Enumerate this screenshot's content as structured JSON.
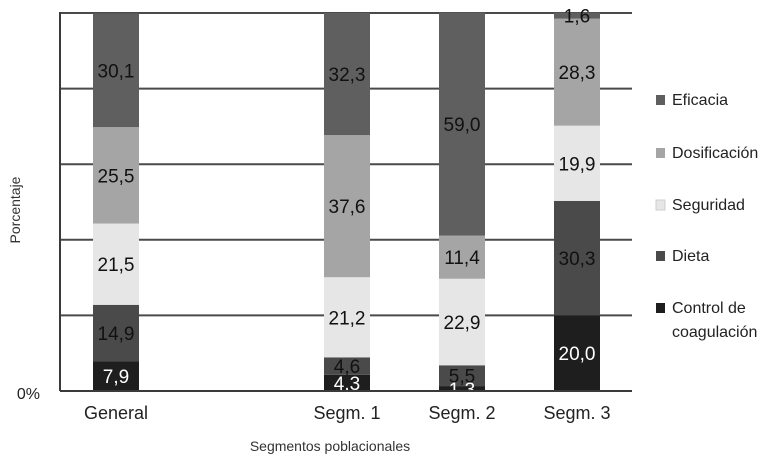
{
  "chart_data": {
    "type": "bar",
    "stacked": true,
    "title": "",
    "xlabel": "Segmentos poblacionales",
    "ylabel": "Porcentaje",
    "ylim": [
      0,
      100
    ],
    "y_tick_labels": [
      "0%"
    ],
    "grid": true,
    "legend_position": "right",
    "categories": [
      "General",
      "Segm. 1",
      "Segm. 2",
      "Segm. 3"
    ],
    "series": [
      {
        "name": "Control de coagulación",
        "color": "#1e1e1e",
        "values": [
          7.9,
          4.3,
          1.3,
          20.0
        ],
        "labels": [
          "7,9",
          "4,3",
          "1,3",
          "20,0"
        ]
      },
      {
        "name": "Dieta",
        "color": "#4a4a4a",
        "values": [
          14.9,
          4.6,
          5.5,
          30.3
        ],
        "labels": [
          "14,9",
          "4,6",
          "5,5",
          "30,3"
        ]
      },
      {
        "name": "Seguridad",
        "color": "#e6e6e6",
        "values": [
          21.5,
          21.2,
          22.9,
          19.9
        ],
        "labels": [
          "21,5",
          "21,2",
          "22,9",
          "19,9"
        ]
      },
      {
        "name": "Dosificación",
        "color": "#a5a5a5",
        "values": [
          25.5,
          37.6,
          11.4,
          28.3
        ],
        "labels": [
          "25,5",
          "37,6",
          "11,4",
          "28,3"
        ]
      },
      {
        "name": "Eficacia",
        "color": "#5f5f5f",
        "values": [
          30.1,
          32.3,
          59.0,
          1.6
        ],
        "labels": [
          "30,1",
          "32,3",
          "59,0",
          "1,6"
        ]
      }
    ],
    "legend_order": [
      "Eficacia",
      "Dosificación",
      "Seguridad",
      "Dieta",
      "Control de coagulación"
    ]
  }
}
